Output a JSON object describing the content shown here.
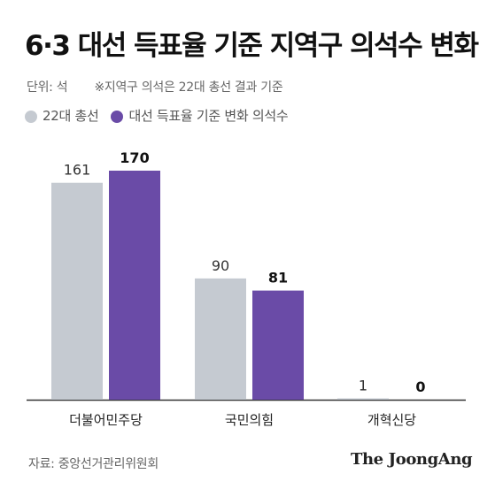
{
  "header": {
    "title": "6·3 대선 득표율 기준 지역구 의석수 변화",
    "unit": "단위: 석",
    "note": "※지역구 의석은 22대 총선 결과 기준"
  },
  "legend": [
    {
      "label": "22대 총선",
      "color": "#C5CAD1"
    },
    {
      "label": "대선 득표율 기준 변화 의석수",
      "color": "#6A4BA7"
    }
  ],
  "chart_data": {
    "type": "bar",
    "categories": [
      "더불어민주당",
      "국민의힘",
      "개혁신당"
    ],
    "series": [
      {
        "name": "22대 총선",
        "values": [
          161,
          90,
          1
        ],
        "color": "#C5CAD1"
      },
      {
        "name": "대선 득표율 기준 변화 의석수",
        "values": [
          170,
          81,
          0
        ],
        "color": "#6A4BA7"
      }
    ],
    "title": "6·3 대선 득표율 기준 지역구 의석수 변화",
    "ylabel": "단위: 석",
    "ylim": [
      0,
      170
    ],
    "grid": false,
    "legend_position": "top-left",
    "data_labels": true
  },
  "footer": {
    "source": "자료: 중앙선거관리위원회",
    "brand": "The JoongAng"
  }
}
